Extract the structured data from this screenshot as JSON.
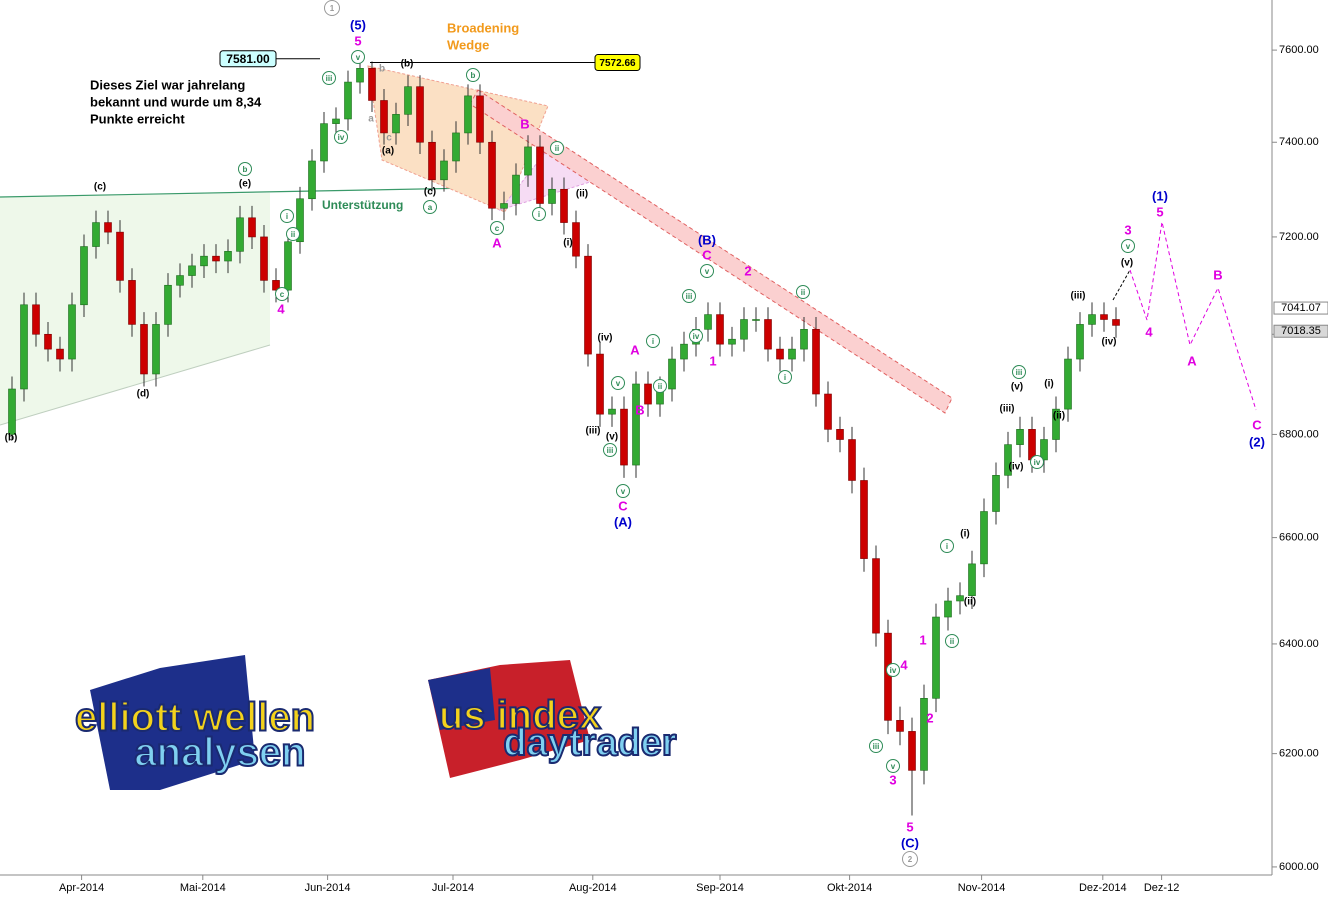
{
  "chart_data": {
    "type": "candlestick",
    "log_scale": true,
    "ylim": [
      5986,
      7711
    ],
    "yticks": [
      {
        "value": 6000,
        "label": "6000.00"
      },
      {
        "value": 6200,
        "label": "6200.00"
      },
      {
        "value": 6400,
        "label": "6400.00"
      },
      {
        "value": 6600,
        "label": "6600.00"
      },
      {
        "value": 6800,
        "label": "6800.00"
      },
      {
        "value": 7000,
        "label": "7000.00"
      },
      {
        "value": 7200,
        "label": "7200.00"
      },
      {
        "value": 7400,
        "label": "7400.00"
      },
      {
        "value": 7600,
        "label": "7600.00"
      }
    ],
    "xlim": [
      -1,
      105
    ],
    "xticks": [
      {
        "value": 5.8,
        "label": "Apr-2014"
      },
      {
        "value": 15.9,
        "label": "Mai-2014"
      },
      {
        "value": 26.3,
        "label": "Jun-2014"
      },
      {
        "value": 36.75,
        "label": "Jul-2014"
      },
      {
        "value": 48.4,
        "label": "Aug-2014"
      },
      {
        "value": 59,
        "label": "Sep-2014"
      },
      {
        "value": 69.8,
        "label": "Okt-2014"
      },
      {
        "value": 80.8,
        "label": "Nov-2014"
      },
      {
        "value": 90.9,
        "label": "Dez-2014"
      },
      {
        "value": 95.8,
        "label": "Dez-12"
      }
    ],
    "colors": {
      "up": "#33aa33",
      "down": "#cc0000"
    },
    "open": [
      6800,
      6890,
      7060,
      7000,
      6970,
      6950,
      7060,
      7180,
      7230,
      7210,
      7110,
      7020,
      6920,
      7020,
      7100,
      7120,
      7140,
      7160,
      7150,
      7170,
      7240,
      7200,
      7110,
      7090,
      7190,
      7280,
      7360,
      7440,
      7450,
      7530,
      7560,
      7490,
      7420,
      7460,
      7520,
      7400,
      7320,
      7360,
      7420,
      7500,
      7400,
      7260,
      7270,
      7330,
      7390,
      7270,
      7300,
      7230,
      7160,
      6960,
      6840,
      6850,
      6740,
      6900,
      6860,
      6890,
      6950,
      6980,
      7010,
      7040,
      6980,
      6990,
      7030,
      7030,
      6970,
      6950,
      6970,
      7010,
      6880,
      6810,
      6790,
      6710,
      6560,
      6420,
      6260,
      6240,
      6170,
      6300,
      6450,
      6480,
      6490,
      6550,
      6650,
      6720,
      6780,
      6810,
      6750,
      6790,
      6850,
      6950,
      7020,
      7040,
      7030
    ],
    "high": [
      6915,
      7085,
      7085,
      7025,
      6995,
      7085,
      7205,
      7255,
      7255,
      7235,
      7135,
      7045,
      7045,
      7125,
      7145,
      7165,
      7185,
      7185,
      7195,
      7265,
      7265,
      7225,
      7135,
      7215,
      7305,
      7385,
      7465,
      7475,
      7555,
      7581,
      7575,
      7515,
      7485,
      7545,
      7545,
      7425,
      7385,
      7445,
      7525,
      7525,
      7425,
      7295,
      7355,
      7415,
      7415,
      7325,
      7325,
      7255,
      7185,
      6985,
      6875,
      6875,
      6925,
      6925,
      6915,
      6975,
      7005,
      7035,
      7065,
      7065,
      7015,
      7055,
      7055,
      7055,
      6995,
      6995,
      7035,
      7035,
      6905,
      6835,
      6815,
      6735,
      6585,
      6445,
      6285,
      6265,
      6325,
      6475,
      6505,
      6515,
      6575,
      6675,
      6745,
      6805,
      6835,
      6835,
      6815,
      6875,
      6975,
      7045,
      7065,
      7065,
      7055
    ],
    "low": [
      6790,
      6865,
      6975,
      6945,
      6925,
      6925,
      7035,
      7155,
      7185,
      7085,
      6995,
      6895,
      6895,
      6995,
      7075,
      7095,
      7115,
      7125,
      7125,
      7145,
      7175,
      7085,
      7065,
      7065,
      7165,
      7255,
      7335,
      7415,
      7425,
      7505,
      7465,
      7395,
      7395,
      7435,
      7375,
      7295,
      7295,
      7335,
      7395,
      7375,
      7235,
      7235,
      7245,
      7305,
      7245,
      7245,
      7205,
      7135,
      6935,
      6815,
      6815,
      6715,
      6715,
      6835,
      6835,
      6865,
      6925,
      6955,
      6985,
      6955,
      6955,
      6965,
      7005,
      6945,
      6925,
      6925,
      6945,
      6855,
      6785,
      6765,
      6685,
      6535,
      6395,
      6235,
      6215,
      6090,
      6145,
      6275,
      6425,
      6455,
      6465,
      6525,
      6625,
      6695,
      6755,
      6725,
      6725,
      6765,
      6825,
      6925,
      6995,
      7005,
      6993
    ],
    "close": [
      6890,
      7060,
      7000,
      6970,
      6950,
      7060,
      7180,
      7230,
      7210,
      7110,
      7020,
      6920,
      7020,
      7100,
      7120,
      7140,
      7160,
      7150,
      7170,
      7240,
      7200,
      7110,
      7090,
      7190,
      7280,
      7360,
      7440,
      7450,
      7530,
      7560,
      7490,
      7420,
      7460,
      7520,
      7400,
      7320,
      7360,
      7420,
      7500,
      7400,
      7260,
      7270,
      7330,
      7390,
      7270,
      7300,
      7230,
      7160,
      6960,
      6840,
      6850,
      6740,
      6900,
      6860,
      6890,
      6950,
      6980,
      7010,
      7040,
      6980,
      6990,
      7030,
      7030,
      6970,
      6950,
      6970,
      7010,
      6880,
      6810,
      6790,
      6710,
      6560,
      6420,
      6260,
      6240,
      6170,
      6300,
      6450,
      6480,
      6490,
      6550,
      6650,
      6720,
      6780,
      6810,
      6750,
      6790,
      6850,
      6950,
      7020,
      7040,
      7030,
      7018
    ],
    "price_levels": [
      {
        "value": 7581,
        "label": "7581.00",
        "color": "#ccffff"
      },
      {
        "value": 7572.66,
        "label": "7572.66",
        "color": "#ffff00"
      }
    ],
    "last_prices": [
      {
        "value": 7041.07,
        "label": "7041.07",
        "color": "#ffffff"
      },
      {
        "value": 7018.35,
        "label": "7018.35",
        "color": "#d8d8d8"
      }
    ],
    "wedge_label": [
      "Broadening",
      "Wedge"
    ],
    "support_label": "Unterstützung",
    "note": [
      "Dieses Ziel war jahrelang",
      "bekannt und wurde um 8,34",
      "Punkte erreicht"
    ],
    "annotations": [
      {
        "text": "1",
        "color": "#999999",
        "circled": true
      },
      {
        "text": "(5)",
        "color": "#0000cc"
      },
      {
        "text": "5",
        "color": "#e000e0"
      },
      {
        "text": "v",
        "color": "#2e8b57",
        "circled": true
      },
      {
        "text": "iii",
        "color": "#2e8b57",
        "circled": true
      },
      {
        "text": "iv",
        "color": "#2e8b57",
        "circled": true
      },
      {
        "text": "b",
        "color": "#2e8b57",
        "circled": true
      },
      {
        "text": "(e)",
        "color": "#000000"
      },
      {
        "text": "i",
        "color": "#2e8b57",
        "circled": true
      },
      {
        "text": "ii",
        "color": "#2e8b57",
        "circled": true
      },
      {
        "text": "c",
        "color": "#2e8b57",
        "circled": true
      },
      {
        "text": "4",
        "color": "#e000e0"
      },
      {
        "text": "(c)",
        "color": "#000000"
      },
      {
        "text": "(d)",
        "color": "#000000"
      },
      {
        "text": "(b)",
        "color": "#000000"
      },
      {
        "text": "(b)",
        "color": "#000000"
      },
      {
        "text": "b",
        "color": "#999999"
      },
      {
        "text": "a",
        "color": "#999999"
      },
      {
        "text": "c",
        "color": "#999999"
      },
      {
        "text": "(a)",
        "color": "#000000"
      },
      {
        "text": "(c)",
        "color": "#000000"
      },
      {
        "text": "a",
        "color": "#2e8b57",
        "circled": true
      },
      {
        "text": "b",
        "color": "#2e8b57",
        "circled": true
      },
      {
        "text": "c",
        "color": "#2e8b57",
        "circled": true
      },
      {
        "text": "A",
        "color": "#e000e0"
      },
      {
        "text": "B",
        "color": "#e000e0"
      },
      {
        "text": "ii",
        "color": "#2e8b57",
        "circled": true
      },
      {
        "text": "i",
        "color": "#2e8b57",
        "circled": true
      },
      {
        "text": "(ii)",
        "color": "#000000"
      },
      {
        "text": "(i)",
        "color": "#000000"
      },
      {
        "text": "(iv)",
        "color": "#000000"
      },
      {
        "text": "(iii)",
        "color": "#000000"
      },
      {
        "text": "(v)",
        "color": "#000000"
      },
      {
        "text": "iii",
        "color": "#2e8b57",
        "circled": true
      },
      {
        "text": "v",
        "color": "#2e8b57",
        "circled": true
      },
      {
        "text": "A",
        "color": "#e000e0"
      },
      {
        "text": "B",
        "color": "#e000e0"
      },
      {
        "text": "i",
        "color": "#2e8b57",
        "circled": true
      },
      {
        "text": "ii",
        "color": "#2e8b57",
        "circled": true
      },
      {
        "text": "iii",
        "color": "#2e8b57",
        "circled": true
      },
      {
        "text": "iv",
        "color": "#2e8b57",
        "circled": true
      },
      {
        "text": "v",
        "color": "#2e8b57",
        "circled": true
      },
      {
        "text": "v",
        "color": "#2e8b57",
        "circled": true
      },
      {
        "text": "C",
        "color": "#e000e0"
      },
      {
        "text": "(A)",
        "color": "#0000cc"
      },
      {
        "text": "(B)",
        "color": "#0000cc"
      },
      {
        "text": "C",
        "color": "#e000e0"
      },
      {
        "text": "1",
        "color": "#e000e0"
      },
      {
        "text": "2",
        "color": "#e000e0"
      },
      {
        "text": "ii",
        "color": "#2e8b57",
        "circled": true
      },
      {
        "text": "i",
        "color": "#2e8b57",
        "circled": true
      },
      {
        "text": "4",
        "color": "#e000e0"
      },
      {
        "text": "iv",
        "color": "#2e8b57",
        "circled": true
      },
      {
        "text": "iii",
        "color": "#2e8b57",
        "circled": true
      },
      {
        "text": "v",
        "color": "#2e8b57",
        "circled": true
      },
      {
        "text": "3",
        "color": "#e000e0"
      },
      {
        "text": "1",
        "color": "#e000e0"
      },
      {
        "text": "ii",
        "color": "#2e8b57",
        "circled": true
      },
      {
        "text": "2",
        "color": "#e000e0"
      },
      {
        "text": "i",
        "color": "#2e8b57",
        "circled": true
      },
      {
        "text": "5",
        "color": "#e000e0"
      },
      {
        "text": "(C)",
        "color": "#0000cc"
      },
      {
        "text": "2",
        "color": "#999999",
        "circled": true
      },
      {
        "text": "(i)",
        "color": "#000000"
      },
      {
        "text": "(ii)",
        "color": "#000000"
      },
      {
        "text": "(iii)",
        "color": "#000000"
      },
      {
        "text": "(iv)",
        "color": "#000000"
      },
      {
        "text": "iv",
        "color": "#2e8b57",
        "circled": true
      },
      {
        "text": "iii",
        "color": "#2e8b57",
        "circled": true
      },
      {
        "text": "(v)",
        "color": "#000000"
      },
      {
        "text": "(i)",
        "color": "#000000"
      },
      {
        "text": "(ii)",
        "color": "#000000"
      },
      {
        "text": "(iii)",
        "color": "#000000"
      },
      {
        "text": "(iv)",
        "color": "#000000"
      },
      {
        "text": "(v)",
        "color": "#000000"
      },
      {
        "text": "v",
        "color": "#2e8b57",
        "circled": true
      },
      {
        "text": "3",
        "color": "#e000e0"
      },
      {
        "text": "(1)",
        "color": "#0000cc"
      },
      {
        "text": "5",
        "color": "#e000e0"
      },
      {
        "text": "4",
        "color": "#e000e0"
      },
      {
        "text": "A",
        "color": "#e000e0"
      },
      {
        "text": "B",
        "color": "#e000e0"
      },
      {
        "text": "C",
        "color": "#e000e0"
      },
      {
        "text": "(2)",
        "color": "#0000cc"
      }
    ]
  },
  "logos": [
    {
      "lines": [
        "elliott wellen",
        "analysen"
      ]
    },
    {
      "lines": [
        "us index",
        "daytrader"
      ]
    }
  ]
}
